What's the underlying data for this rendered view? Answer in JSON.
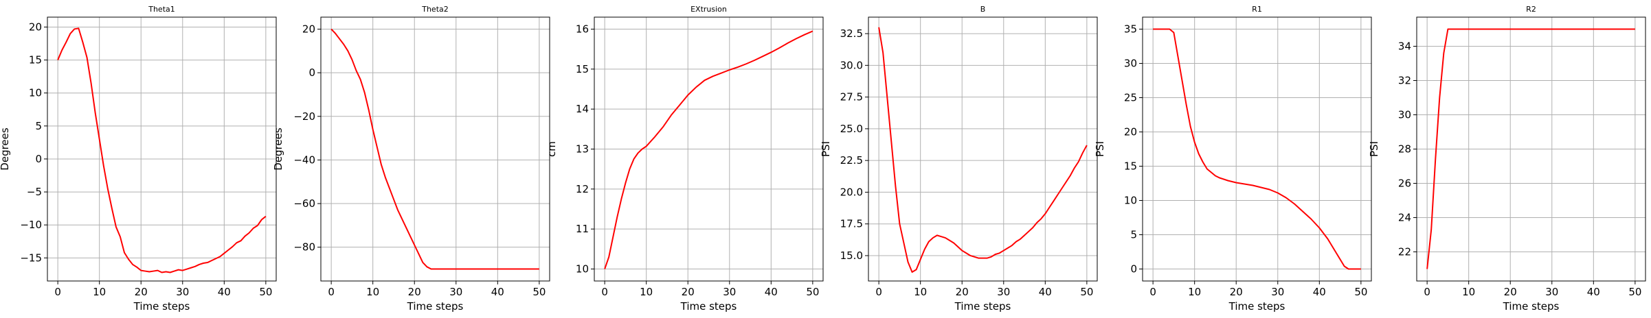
{
  "chart_data": [
    {
      "type": "line",
      "title": "Theta1",
      "xlabel": "Time steps",
      "ylabel": "Degrees",
      "xlim": [
        -2.5,
        52.5
      ],
      "ylim": [
        -18.5,
        21.5
      ],
      "xticks": [
        0,
        10,
        20,
        30,
        40,
        50
      ],
      "yticks": [
        -15,
        -10,
        -5,
        0,
        5,
        10,
        15,
        20
      ],
      "grid": true,
      "color": "#ff0000",
      "series": [
        {
          "x": [
            0,
            1,
            2,
            3,
            4,
            5,
            6,
            7,
            8,
            9,
            10,
            11,
            12,
            13,
            14,
            15,
            16,
            17,
            18,
            19,
            20,
            21,
            22,
            23,
            24,
            25,
            26,
            27,
            28,
            29,
            30,
            31,
            32,
            33,
            34,
            35,
            36,
            37,
            38,
            39,
            40,
            41,
            42,
            43,
            44,
            45,
            46,
            47,
            48,
            49,
            50
          ],
          "values": [
            15,
            16.5,
            17.7,
            19,
            19.7,
            19.8,
            17.7,
            15.4,
            11.5,
            7,
            3,
            -1,
            -4.5,
            -7.5,
            -10.3,
            -11.8,
            -14.2,
            -15.2,
            -16,
            -16.4,
            -16.9,
            -17,
            -17.1,
            -17,
            -16.9,
            -17.2,
            -17.1,
            -17.2,
            -17.0,
            -16.8,
            -16.9,
            -16.7,
            -16.5,
            -16.3,
            -16.0,
            -15.8,
            -15.7,
            -15.4,
            -15.1,
            -14.8,
            -14.3,
            -13.8,
            -13.3,
            -12.7,
            -12.4,
            -11.7,
            -11.2,
            -10.5,
            -10.1,
            -9.2,
            -8.7
          ]
        }
      ]
    },
    {
      "type": "line",
      "title": "Theta2",
      "xlabel": "Time steps",
      "ylabel": "Degrees",
      "xlim": [
        -2.5,
        52.5
      ],
      "ylim": [
        -95.5,
        25.5
      ],
      "xticks": [
        0,
        10,
        20,
        30,
        40,
        50
      ],
      "yticks": [
        -80,
        -60,
        -40,
        -20,
        0,
        20
      ],
      "grid": true,
      "color": "#ff0000",
      "series": [
        {
          "x": [
            0,
            1,
            2,
            3,
            4,
            5,
            6,
            7,
            8,
            9,
            10,
            11,
            12,
            13,
            14,
            15,
            16,
            17,
            18,
            19,
            20,
            21,
            22,
            23,
            24,
            25,
            26,
            28,
            30,
            35,
            40,
            45,
            50
          ],
          "values": [
            20,
            18,
            15.5,
            13,
            10,
            6,
            1,
            -3,
            -9,
            -17,
            -26,
            -34,
            -42,
            -48,
            -53,
            -58,
            -63,
            -67,
            -71,
            -75,
            -79,
            -83,
            -87,
            -89,
            -90,
            -90,
            -90,
            -90,
            -90,
            -90,
            -90,
            -90,
            -90
          ]
        }
      ]
    },
    {
      "type": "line",
      "title": "EXtrusion",
      "xlabel": "Time steps",
      "ylabel": "cm",
      "xlim": [
        -2.5,
        52.5
      ],
      "ylim": [
        9.7,
        16.3
      ],
      "xticks": [
        0,
        10,
        20,
        30,
        40,
        50
      ],
      "yticks": [
        10,
        11,
        12,
        13,
        14,
        15,
        16
      ],
      "grid": true,
      "color": "#ff0000",
      "series": [
        {
          "x": [
            0,
            1,
            2,
            3,
            4,
            5,
            6,
            7,
            8,
            9,
            10,
            12,
            14,
            16,
            18,
            20,
            22,
            24,
            26,
            28,
            30,
            32,
            34,
            36,
            38,
            40,
            42,
            44,
            46,
            48,
            50
          ],
          "values": [
            10,
            10.3,
            10.8,
            11.3,
            11.75,
            12.15,
            12.5,
            12.75,
            12.9,
            13.0,
            13.07,
            13.3,
            13.55,
            13.85,
            14.1,
            14.35,
            14.55,
            14.72,
            14.82,
            14.9,
            14.98,
            15.05,
            15.13,
            15.22,
            15.32,
            15.42,
            15.53,
            15.65,
            15.76,
            15.86,
            15.95
          ]
        }
      ]
    },
    {
      "type": "line",
      "title": "B",
      "xlabel": "Time steps",
      "ylabel": "PSI",
      "xlim": [
        -2.5,
        52.5
      ],
      "ylim": [
        13.0,
        33.8
      ],
      "xticks": [
        0,
        10,
        20,
        30,
        40,
        50
      ],
      "yticks": [
        15.0,
        17.5,
        20.0,
        22.5,
        25.0,
        27.5,
        30.0,
        32.5
      ],
      "grid": true,
      "color": "#ff0000",
      "series": [
        {
          "x": [
            0,
            1,
            2,
            3,
            4,
            5,
            6,
            7,
            8,
            9,
            10,
            11,
            12,
            13,
            14,
            15,
            16,
            17,
            18,
            19,
            20,
            21,
            22,
            23,
            24,
            25,
            26,
            27,
            28,
            29,
            30,
            31,
            32,
            33,
            34,
            35,
            36,
            37,
            38,
            39,
            40,
            41,
            42,
            43,
            44,
            45,
            46,
            47,
            48,
            49,
            50
          ],
          "values": [
            33,
            31,
            27.5,
            24,
            20.5,
            17.5,
            16,
            14.5,
            13.7,
            13.9,
            14.7,
            15.5,
            16.1,
            16.4,
            16.6,
            16.5,
            16.4,
            16.2,
            16.0,
            15.7,
            15.4,
            15.2,
            15.0,
            14.9,
            14.8,
            14.8,
            14.8,
            14.9,
            15.1,
            15.2,
            15.4,
            15.6,
            15.8,
            16.1,
            16.3,
            16.6,
            16.9,
            17.2,
            17.6,
            17.9,
            18.3,
            18.8,
            19.3,
            19.8,
            20.3,
            20.8,
            21.3,
            21.9,
            22.4,
            23.1,
            23.7
          ]
        }
      ]
    },
    {
      "type": "line",
      "title": "R1",
      "xlabel": "Time steps",
      "ylabel": "PSI",
      "xlim": [
        -2.5,
        52.5
      ],
      "ylim": [
        -1.75,
        36.75
      ],
      "xticks": [
        0,
        10,
        20,
        30,
        40,
        50
      ],
      "yticks": [
        0,
        5,
        10,
        15,
        20,
        25,
        30,
        35
      ],
      "grid": true,
      "color": "#ff0000",
      "series": [
        {
          "x": [
            0,
            1,
            2,
            3,
            4,
            5,
            6,
            7,
            8,
            9,
            10,
            11,
            12,
            13,
            14,
            15,
            16,
            18,
            20,
            22,
            24,
            26,
            28,
            30,
            32,
            34,
            36,
            38,
            40,
            42,
            44,
            46,
            47,
            48,
            49,
            50
          ],
          "values": [
            35,
            35,
            35,
            35,
            35,
            34.5,
            31,
            27.5,
            24,
            20.8,
            18.5,
            16.8,
            15.6,
            14.6,
            14.1,
            13.6,
            13.3,
            12.9,
            12.6,
            12.4,
            12.2,
            11.9,
            11.6,
            11.1,
            10.4,
            9.5,
            8.4,
            7.3,
            6,
            4.4,
            2.4,
            0.4,
            0,
            0,
            0,
            0
          ]
        }
      ]
    },
    {
      "type": "line",
      "title": "R2",
      "xlabel": "Time steps",
      "ylabel": "PSI",
      "xlim": [
        -2.5,
        52.5
      ],
      "ylim": [
        20.3,
        35.7
      ],
      "xticks": [
        0,
        10,
        20,
        30,
        40,
        50
      ],
      "yticks": [
        22,
        24,
        26,
        28,
        30,
        32,
        34
      ],
      "grid": true,
      "color": "#ff0000",
      "series": [
        {
          "x": [
            0,
            1,
            2,
            3,
            4,
            5,
            10,
            20,
            30,
            40,
            50
          ],
          "values": [
            21,
            23.3,
            27.4,
            31,
            33.6,
            35,
            35,
            35,
            35,
            35,
            35
          ]
        }
      ]
    }
  ]
}
